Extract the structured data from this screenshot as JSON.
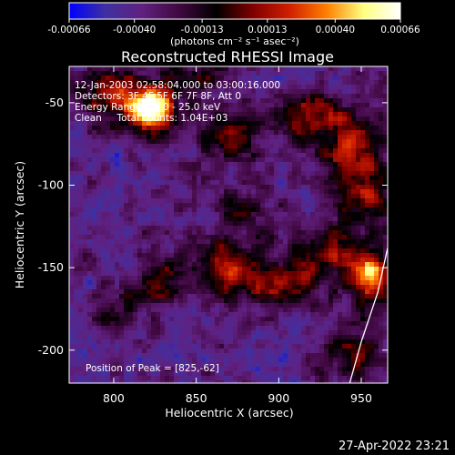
{
  "chart_data": {
    "type": "heatmap",
    "title": "Reconstructed RHESSI Image",
    "xlabel": "Heliocentric X (arcsec)",
    "ylabel": "Heliocentric Y (arcsec)",
    "xlim": [
      773,
      966
    ],
    "ylim": [
      -220,
      -28
    ],
    "xticks": [
      800,
      850,
      900,
      950
    ],
    "yticks": [
      -50,
      -100,
      -150,
      -200
    ],
    "colorbar": {
      "range": [
        -0.00066,
        0.00066
      ],
      "ticks": [
        "-0.00066",
        "-0.00040",
        "-0.00013",
        "0.00013",
        "0.00040",
        "0.00066"
      ],
      "tick_values": [
        -0.00066,
        -0.0004,
        -0.00013,
        0.00013,
        0.0004,
        0.00066
      ],
      "unit_label": "(photons cm⁻² s⁻¹ asec⁻²)",
      "colors": [
        "#0000ff",
        "#4030a0",
        "#602080",
        "#400840",
        "#000000",
        "#800000",
        "#d02000",
        "#ff8000",
        "#ffff80",
        "#ffffff"
      ]
    },
    "annotations": [
      "12-Jan-2003 02:58:04.000 to 03:00:16.000",
      "Detectors: 3F 4F 5F 6F 7F 8F, Att 0",
      "Energy Range: 12.0 - 25.0 keV",
      "Clean     Total counts: 1.04E+03"
    ],
    "peak_label": "Position of Peak = [825,-62]",
    "peak": [
      825,
      -62
    ],
    "hot_spots": [
      {
        "x": 823,
        "y": -55,
        "amp": 1.0,
        "sx": 10,
        "sy": 10
      },
      {
        "x": 800,
        "y": -45,
        "amp": 0.45,
        "sx": 14,
        "sy": 12
      },
      {
        "x": 870,
        "y": -70,
        "amp": 0.35,
        "sx": 14,
        "sy": 10
      },
      {
        "x": 920,
        "y": -58,
        "amp": 0.45,
        "sx": 14,
        "sy": 10
      },
      {
        "x": 945,
        "y": -80,
        "amp": 0.55,
        "sx": 12,
        "sy": 14
      },
      {
        "x": 955,
        "y": -110,
        "amp": 0.4,
        "sx": 10,
        "sy": 12
      },
      {
        "x": 870,
        "y": -150,
        "amp": 0.5,
        "sx": 14,
        "sy": 12
      },
      {
        "x": 905,
        "y": -160,
        "amp": 0.45,
        "sx": 14,
        "sy": 10
      },
      {
        "x": 930,
        "y": -140,
        "amp": 0.4,
        "sx": 12,
        "sy": 12
      },
      {
        "x": 955,
        "y": -155,
        "amp": 0.75,
        "sx": 9,
        "sy": 12
      },
      {
        "x": 945,
        "y": -200,
        "amp": 0.35,
        "sx": 12,
        "sy": 10
      },
      {
        "x": 830,
        "y": -160,
        "amp": 0.35,
        "sx": 12,
        "sy": 10
      },
      {
        "x": 800,
        "y": -175,
        "amp": 0.25,
        "sx": 10,
        "sy": 10
      },
      {
        "x": 880,
        "y": -115,
        "amp": 0.25,
        "sx": 12,
        "sy": 10
      },
      {
        "x": 855,
        "y": -35,
        "amp": 0.3,
        "sx": 14,
        "sy": 8
      }
    ],
    "limb_arc": [
      [
        966,
        -138
      ],
      [
        960,
        -165
      ],
      [
        950,
        -195
      ],
      [
        943,
        -220
      ]
    ]
  },
  "footer": {
    "date": "27-Apr-2022 23:21"
  }
}
